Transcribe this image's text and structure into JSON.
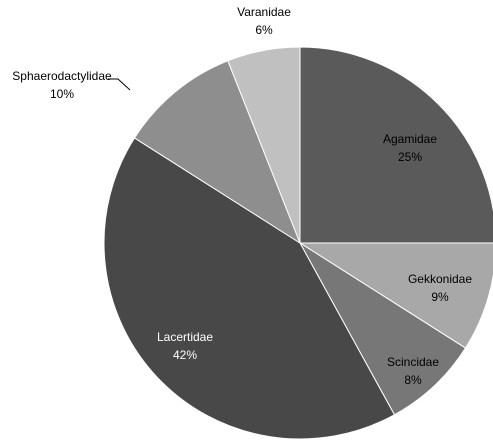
{
  "chart_data": {
    "type": "pie",
    "categories": [
      "Agamidae",
      "Gekkonidae",
      "Scincidae",
      "Lacertidae",
      "Sphaerodactylidae",
      "Varanidae"
    ],
    "values": [
      25,
      9,
      8,
      42,
      10,
      6
    ],
    "value_labels": [
      "25%",
      "9%",
      "8%",
      "42%",
      "10%",
      "6%"
    ],
    "colors": [
      "#5a5a5a",
      "#a8a8a8",
      "#777777",
      "#484848",
      "#8e8e8e",
      "#c0c0c0"
    ]
  }
}
